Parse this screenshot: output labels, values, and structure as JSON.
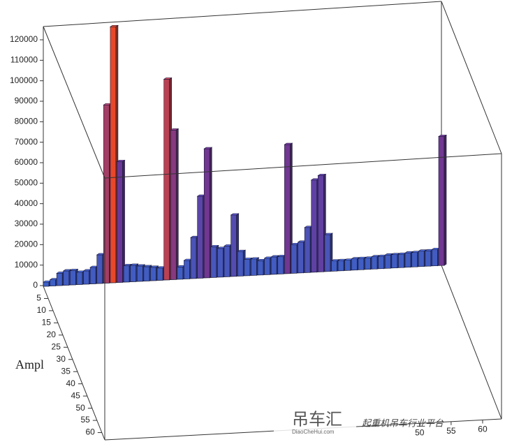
{
  "chart_data": {
    "type": "bar3d",
    "axis_label": "Ampl",
    "values": [
      2000,
      3000,
      6000,
      7000,
      7000,
      6000,
      6500,
      8000,
      14000,
      87000,
      125000,
      59000,
      8000,
      8000,
      7500,
      7000,
      6500,
      6000,
      98000,
      73000,
      6000,
      9000,
      20000,
      40000,
      63000,
      15000,
      14000,
      15000,
      30000,
      12000,
      8000,
      8000,
      7000,
      8000,
      8500,
      8500,
      63000,
      14000,
      15000,
      22000,
      45000,
      47000,
      18000,
      5000,
      5000,
      5000,
      5500,
      5500,
      5500,
      6000,
      6000,
      6500,
      6500,
      6500,
      7000,
      7000,
      7500,
      7500,
      8000,
      63000
    ],
    "colors": [
      "#3c62c8",
      "#6b3696",
      "#e8482a"
    ],
    "ylim": [
      0,
      120000
    ],
    "yticks": [
      0,
      10000,
      20000,
      30000,
      40000,
      50000,
      60000,
      70000,
      80000,
      90000,
      100000,
      110000,
      120000
    ],
    "zlim": [
      0,
      63
    ],
    "zticks": [
      5,
      10,
      15,
      20,
      25,
      30,
      35,
      40,
      45,
      50,
      55,
      60
    ],
    "xlim": [
      0,
      63
    ],
    "xticks": [
      50,
      55,
      60
    ]
  },
  "watermark": {
    "logo": "吊车汇",
    "site": "DiaoCheHui.com",
    "slogan": "起重机吊车行业平台"
  }
}
